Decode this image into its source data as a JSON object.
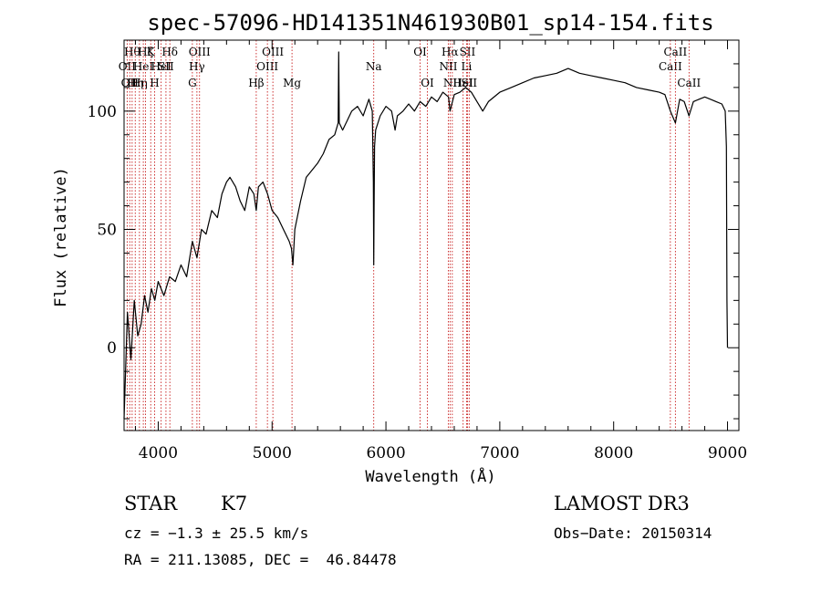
{
  "chart_data": {
    "type": "line",
    "title": "spec-57096-HD141351N461930B01_sp14-154.fits",
    "xlabel": "Wavelength (Å)",
    "ylabel": "Flux (relative)",
    "xlim": [
      3700,
      9100
    ],
    "ylim": [
      -35,
      130
    ],
    "xticks": [
      4000,
      5000,
      6000,
      7000,
      8000,
      9000
    ],
    "yticks": [
      0,
      50,
      100
    ],
    "series": [
      {
        "name": "spectrum",
        "x": [
          3700,
          3730,
          3760,
          3790,
          3820,
          3850,
          3880,
          3910,
          3940,
          3970,
          4000,
          4050,
          4100,
          4150,
          4200,
          4250,
          4300,
          4340,
          4380,
          4420,
          4470,
          4520,
          4560,
          4600,
          4630,
          4680,
          4720,
          4760,
          4800,
          4840,
          4861,
          4880,
          4920,
          4960,
          5000,
          5050,
          5100,
          5150,
          5170,
          5183,
          5200,
          5250,
          5300,
          5350,
          5400,
          5450,
          5500,
          5550,
          5580,
          5585,
          5590,
          5620,
          5660,
          5700,
          5750,
          5800,
          5850,
          5880,
          5890,
          5893,
          5896,
          5900,
          5910,
          5950,
          6000,
          6050,
          6080,
          6100,
          6150,
          6200,
          6250,
          6300,
          6350,
          6400,
          6450,
          6500,
          6550,
          6563,
          6600,
          6650,
          6700,
          6750,
          6800,
          6850,
          6900,
          7000,
          7100,
          7200,
          7300,
          7400,
          7500,
          7600,
          7700,
          7800,
          7900,
          8000,
          8100,
          8200,
          8300,
          8400,
          8450,
          8498,
          8542,
          8580,
          8620,
          8662,
          8700,
          8750,
          8800,
          8850,
          8900,
          8950,
          8980,
          8990,
          8995,
          9000
        ],
        "y": [
          -30,
          15,
          -5,
          20,
          5,
          10,
          22,
          15,
          25,
          20,
          28,
          22,
          30,
          28,
          35,
          30,
          45,
          38,
          50,
          48,
          58,
          55,
          65,
          70,
          72,
          68,
          62,
          58,
          68,
          65,
          58,
          68,
          70,
          65,
          58,
          55,
          50,
          45,
          42,
          35,
          50,
          62,
          72,
          75,
          78,
          82,
          88,
          90,
          95,
          125,
          95,
          92,
          96,
          100,
          102,
          98,
          105,
          100,
          70,
          35,
          60,
          85,
          92,
          98,
          102,
          100,
          92,
          98,
          100,
          103,
          100,
          104,
          102,
          106,
          104,
          108,
          106,
          100,
          107,
          108,
          110,
          108,
          104,
          100,
          104,
          108,
          110,
          112,
          114,
          115,
          116,
          118,
          116,
          115,
          114,
          113,
          112,
          110,
          109,
          108,
          107,
          100,
          95,
          105,
          104,
          98,
          104,
          105,
          106,
          105,
          104,
          103,
          100,
          85,
          20,
          0
        ]
      }
    ],
    "lines": [
      {
        "wl": 3727,
        "label": "OII",
        "row": 2
      },
      {
        "wl": 3750,
        "label": "OII",
        "row": 3
      },
      {
        "wl": 3771,
        "label": "Hθ",
        "row": 1
      },
      {
        "wl": 3798,
        "label": "Hη",
        "row": 3
      },
      {
        "wl": 3835,
        "label": "Hη",
        "row": 3
      },
      {
        "wl": 3869,
        "label": "HeI",
        "row": 2
      },
      {
        "wl": 3889,
        "label": "Hζ",
        "row": 1
      },
      {
        "wl": 3934,
        "label": "K",
        "row": 1
      },
      {
        "wl": 3968,
        "label": "H",
        "row": 3
      },
      {
        "wl": 4026,
        "label": "HeI",
        "row": 2
      },
      {
        "wl": 4068,
        "label": "SII",
        "row": 2
      },
      {
        "wl": 4102,
        "label": "Hδ",
        "row": 1
      },
      {
        "wl": 4300,
        "label": "G",
        "row": 3
      },
      {
        "wl": 4340,
        "label": "Hγ",
        "row": 2
      },
      {
        "wl": 4363,
        "label": "OIII",
        "row": 1
      },
      {
        "wl": 4861,
        "label": "Hβ",
        "row": 3
      },
      {
        "wl": 4959,
        "label": "OIII",
        "row": 2
      },
      {
        "wl": 5007,
        "label": "OIII",
        "row": 1
      },
      {
        "wl": 5175,
        "label": "Mg",
        "row": 3
      },
      {
        "wl": 5893,
        "label": "Na",
        "row": 2
      },
      {
        "wl": 6300,
        "label": "OI",
        "row": 1
      },
      {
        "wl": 6364,
        "label": "OI",
        "row": 3
      },
      {
        "wl": 6548,
        "label": "NII",
        "row": 2
      },
      {
        "wl": 6563,
        "label": "Hα",
        "row": 1
      },
      {
        "wl": 6583,
        "label": "NII",
        "row": 3
      },
      {
        "wl": 6678,
        "label": "HeI",
        "row": 3
      },
      {
        "wl": 6708,
        "label": "Li",
        "row": 2
      },
      {
        "wl": 6716,
        "label": "SII",
        "row": 1
      },
      {
        "wl": 6731,
        "label": "SII",
        "row": 3
      },
      {
        "wl": 8498,
        "label": "CaII",
        "row": 2
      },
      {
        "wl": 8542,
        "label": "CaII",
        "row": 1
      },
      {
        "wl": 8662,
        "label": "CaII",
        "row": 3
      }
    ]
  },
  "info": {
    "class_label": "STAR",
    "subclass": "K7",
    "survey": "LAMOST DR3",
    "cz_line": "cz = −1.3 ± 25.5 km/s",
    "obs_date": "Obs−Date: 20150314",
    "coords": "RA = 211.13085, DEC =  46.84478"
  }
}
